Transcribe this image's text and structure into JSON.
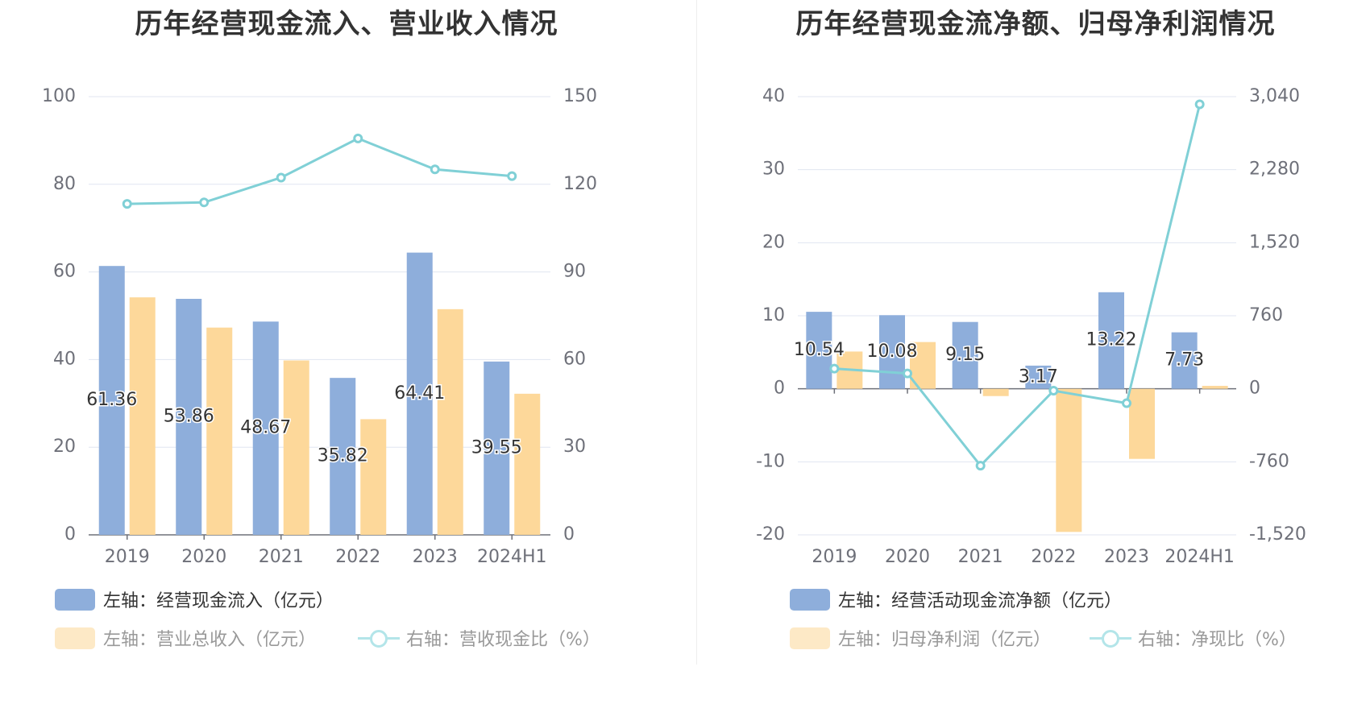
{
  "colors": {
    "bar1": "#8eaedb",
    "bar2": "#fdd89a",
    "line": "#80d0d6",
    "grid": "#e0e6f1",
    "axis": "#6e7079"
  },
  "chart_data": [
    {
      "type": "bar",
      "title": "历年经营现金流入、营业收入情况",
      "categories": [
        "2019",
        "2020",
        "2021",
        "2022",
        "2023",
        "2024H1"
      ],
      "left_axis": {
        "min": 0,
        "max": 100,
        "ticks": [
          "0",
          "20",
          "40",
          "60",
          "80",
          "100"
        ]
      },
      "right_axis": {
        "min": 0,
        "max": 150,
        "ticks": [
          "0",
          "30",
          "60",
          "90",
          "120",
          "150"
        ]
      },
      "series": [
        {
          "name": "左轴：经营现金流入（亿元）",
          "type": "bar",
          "axis": "left",
          "values": [
            61.36,
            53.86,
            48.67,
            35.82,
            64.41,
            39.55
          ],
          "labels": [
            "61.36",
            "53.86",
            "48.67",
            "35.82",
            "64.41",
            "39.55"
          ]
        },
        {
          "name": "左轴：营业总收入（亿元）",
          "type": "bar",
          "axis": "left",
          "values": [
            54.2,
            47.3,
            39.8,
            26.4,
            51.5,
            32.2
          ]
        },
        {
          "name": "右轴：营收现金比（%）",
          "type": "line",
          "axis": "right",
          "values": [
            113.3,
            113.8,
            122.3,
            135.7,
            125.1,
            122.8
          ]
        }
      ]
    },
    {
      "type": "bar",
      "title": "历年经营现金流净额、归母净利润情况",
      "categories": [
        "2019",
        "2020",
        "2021",
        "2022",
        "2023",
        "2024H1"
      ],
      "left_axis": {
        "min": -20,
        "max": 40,
        "ticks": [
          "-20",
          "-10",
          "0",
          "10",
          "20",
          "30",
          "40"
        ]
      },
      "right_axis": {
        "min": -1520,
        "max": 3040,
        "ticks": [
          "-1,520",
          "-760",
          "0",
          "760",
          "1,520",
          "2,280",
          "3,040"
        ]
      },
      "series": [
        {
          "name": "左轴：经营活动现金流净额（亿元）",
          "type": "bar",
          "axis": "left",
          "values": [
            10.54,
            10.08,
            9.15,
            3.17,
            13.22,
            7.73
          ],
          "labels": [
            "10.54",
            "10.08",
            "9.15",
            "3.17",
            "13.22",
            "7.73"
          ]
        },
        {
          "name": "左轴：归母净利润（亿元）",
          "type": "bar",
          "axis": "left",
          "values": [
            5.1,
            6.4,
            -1.0,
            -19.6,
            -9.6,
            0.4
          ]
        },
        {
          "name": "右轴：净现比（%）",
          "type": "line",
          "axis": "right",
          "values": [
            210,
            160,
            -800,
            -20,
            -150,
            2960
          ]
        }
      ]
    }
  ]
}
